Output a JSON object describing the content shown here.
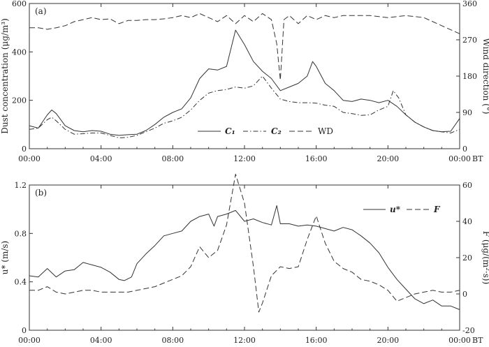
{
  "chart_data": [
    {
      "type": "line",
      "panel_label": "(a)",
      "ylabel_left": "Dust concentration (μg/m³)",
      "ylabel_right": "Wind direction (°)",
      "xlabel": "BT",
      "x_ticks": [
        "00:00",
        "04:00",
        "08:00",
        "12:00",
        "16:00",
        "20:00",
        "00:00"
      ],
      "x_tick_hours": [
        0,
        4,
        8,
        12,
        16,
        20,
        24
      ],
      "ylim_left": [
        0,
        600
      ],
      "yticks_left": [
        "0",
        "200",
        "400",
        "600"
      ],
      "ylim_right": [
        0,
        360
      ],
      "yticks_right": [
        "0",
        "90",
        "180",
        "270",
        "360"
      ],
      "legend_position": "bottom-center",
      "series": [
        {
          "name": "C₁",
          "axis": "left",
          "style": "solid",
          "points": [
            [
              0,
              95
            ],
            [
              0.5,
              85
            ],
            [
              1,
              140
            ],
            [
              1.25,
              160
            ],
            [
              1.5,
              145
            ],
            [
              2,
              95
            ],
            [
              2.5,
              75
            ],
            [
              3,
              70
            ],
            [
              3.5,
              75
            ],
            [
              4,
              72
            ],
            [
              4.5,
              60
            ],
            [
              5,
              55
            ],
            [
              5.5,
              58
            ],
            [
              6,
              60
            ],
            [
              6.5,
              75
            ],
            [
              7,
              100
            ],
            [
              7.5,
              130
            ],
            [
              8,
              150
            ],
            [
              8.5,
              165
            ],
            [
              9,
              210
            ],
            [
              9.5,
              290
            ],
            [
              10,
              330
            ],
            [
              10.5,
              325
            ],
            [
              11,
              340
            ],
            [
              11.5,
              490
            ],
            [
              12,
              430
            ],
            [
              12.5,
              360
            ],
            [
              13,
              320
            ],
            [
              13.5,
              290
            ],
            [
              14,
              240
            ],
            [
              14.5,
              255
            ],
            [
              15,
              270
            ],
            [
              15.5,
              300
            ],
            [
              15.8,
              360
            ],
            [
              16,
              340
            ],
            [
              16.5,
              270
            ],
            [
              17,
              240
            ],
            [
              17.5,
              200
            ],
            [
              18,
              195
            ],
            [
              18.5,
              205
            ],
            [
              19,
              200
            ],
            [
              19.5,
              190
            ],
            [
              20,
              200
            ],
            [
              20.5,
              175
            ],
            [
              21,
              140
            ],
            [
              21.5,
              110
            ],
            [
              22,
              90
            ],
            [
              22.5,
              75
            ],
            [
              23,
              70
            ],
            [
              23.5,
              72
            ],
            [
              24,
              125
            ]
          ]
        },
        {
          "name": "C₂",
          "axis": "left",
          "style": "dashdot",
          "points": [
            [
              0,
              80
            ],
            [
              0.5,
              85
            ],
            [
              1,
              120
            ],
            [
              1.25,
              130
            ],
            [
              1.5,
              115
            ],
            [
              2,
              80
            ],
            [
              2.5,
              60
            ],
            [
              3,
              62
            ],
            [
              3.5,
              65
            ],
            [
              4,
              65
            ],
            [
              4.5,
              55
            ],
            [
              5,
              45
            ],
            [
              5.5,
              47
            ],
            [
              6,
              55
            ],
            [
              6.5,
              70
            ],
            [
              7,
              85
            ],
            [
              7.5,
              105
            ],
            [
              8,
              115
            ],
            [
              8.5,
              130
            ],
            [
              9,
              160
            ],
            [
              9.5,
              200
            ],
            [
              10,
              230
            ],
            [
              10.5,
              240
            ],
            [
              11,
              245
            ],
            [
              11.5,
              255
            ],
            [
              12,
              250
            ],
            [
              12.5,
              260
            ],
            [
              13,
              300
            ],
            [
              13.5,
              250
            ],
            [
              14,
              205
            ],
            [
              14.5,
              195
            ],
            [
              15,
              190
            ],
            [
              15.5,
              190
            ],
            [
              16,
              188
            ],
            [
              16.5,
              180
            ],
            [
              17,
              175
            ],
            [
              17.5,
              150
            ],
            [
              18,
              145
            ],
            [
              18.5,
              138
            ],
            [
              19,
              140
            ],
            [
              19.5,
              160
            ],
            [
              20,
              175
            ],
            [
              20.3,
              240
            ],
            [
              20.6,
              210
            ],
            [
              21,
              140
            ],
            [
              21.5,
              110
            ],
            [
              22,
              90
            ],
            [
              22.5,
              75
            ],
            [
              23,
              70
            ],
            [
              23.5,
              65
            ],
            [
              24,
              80
            ]
          ]
        },
        {
          "name": "WD",
          "axis": "right",
          "style": "dashed",
          "points": [
            [
              0,
              300
            ],
            [
              0.5,
              300
            ],
            [
              1,
              296
            ],
            [
              1.5,
              300
            ],
            [
              2,
              305
            ],
            [
              2.5,
              315
            ],
            [
              3,
              320
            ],
            [
              3.5,
              325
            ],
            [
              4,
              320
            ],
            [
              4.5,
              322
            ],
            [
              5,
              310
            ],
            [
              5.5,
              318
            ],
            [
              6,
              318
            ],
            [
              6.5,
              320
            ],
            [
              7,
              320
            ],
            [
              7.5,
              322
            ],
            [
              8,
              325
            ],
            [
              8.5,
              330
            ],
            [
              9,
              325
            ],
            [
              9.5,
              335
            ],
            [
              10,
              325
            ],
            [
              10.5,
              315
            ],
            [
              11,
              330
            ],
            [
              11.5,
              310
            ],
            [
              12,
              330
            ],
            [
              12.5,
              315
            ],
            [
              13,
              335
            ],
            [
              13.5,
              320
            ],
            [
              13.8,
              260
            ],
            [
              14,
              170
            ],
            [
              14.2,
              320
            ],
            [
              14.5,
              330
            ],
            [
              15,
              310
            ],
            [
              15.5,
              330
            ],
            [
              16,
              320
            ],
            [
              16.5,
              330
            ],
            [
              17,
              325
            ],
            [
              17.5,
              330
            ],
            [
              18,
              330
            ],
            [
              19,
              330
            ],
            [
              20,
              325
            ],
            [
              21,
              330
            ],
            [
              22,
              325
            ],
            [
              23,
              305
            ],
            [
              23.5,
              295
            ],
            [
              24,
              285
            ]
          ]
        }
      ]
    },
    {
      "type": "line",
      "panel_label": "(b)",
      "ylabel_left": "u* (m/s)",
      "ylabel_right": "F (μg/(m²·s))",
      "xlabel": "BT",
      "x_ticks": [
        "00:00",
        "04:00",
        "08:00",
        "12:00",
        "16:00",
        "20:00",
        "00:00"
      ],
      "x_tick_hours": [
        0,
        4,
        8,
        12,
        16,
        20,
        24
      ],
      "ylim_left": [
        0,
        1.2
      ],
      "yticks_left": [
        "0",
        "0.4",
        "0.8",
        "1.2"
      ],
      "ylim_right": [
        -20,
        60
      ],
      "yticks_right": [
        "-20",
        "0",
        "20",
        "40",
        "60"
      ],
      "legend_position": "top-right",
      "series": [
        {
          "name": "u*",
          "axis": "left",
          "style": "solid",
          "points": [
            [
              0,
              0.45
            ],
            [
              0.5,
              0.44
            ],
            [
              1,
              0.51
            ],
            [
              1.5,
              0.44
            ],
            [
              2,
              0.49
            ],
            [
              2.5,
              0.5
            ],
            [
              3,
              0.56
            ],
            [
              3.5,
              0.54
            ],
            [
              4,
              0.52
            ],
            [
              4.5,
              0.48
            ],
            [
              5,
              0.42
            ],
            [
              5.3,
              0.41
            ],
            [
              5.7,
              0.44
            ],
            [
              6,
              0.55
            ],
            [
              6.5,
              0.63
            ],
            [
              7,
              0.7
            ],
            [
              7.5,
              0.78
            ],
            [
              8,
              0.8
            ],
            [
              8.5,
              0.82
            ],
            [
              9,
              0.9
            ],
            [
              9.5,
              0.94
            ],
            [
              10,
              0.96
            ],
            [
              10.3,
              0.86
            ],
            [
              10.5,
              0.94
            ],
            [
              11,
              0.96
            ],
            [
              11.5,
              0.99
            ],
            [
              12,
              0.9
            ],
            [
              12.5,
              0.92
            ],
            [
              13,
              0.89
            ],
            [
              13.5,
              0.87
            ],
            [
              13.8,
              1.03
            ],
            [
              14,
              0.88
            ],
            [
              14.5,
              0.88
            ],
            [
              15,
              0.86
            ],
            [
              15.5,
              0.87
            ],
            [
              16,
              0.86
            ],
            [
              16.5,
              0.84
            ],
            [
              17,
              0.82
            ],
            [
              17.5,
              0.85
            ],
            [
              18,
              0.83
            ],
            [
              18.5,
              0.78
            ],
            [
              19,
              0.72
            ],
            [
              19.5,
              0.64
            ],
            [
              20,
              0.52
            ],
            [
              20.5,
              0.42
            ],
            [
              21,
              0.34
            ],
            [
              21.5,
              0.26
            ],
            [
              22,
              0.22
            ],
            [
              22.5,
              0.25
            ],
            [
              23,
              0.2
            ],
            [
              23.5,
              0.2
            ],
            [
              24,
              0.17
            ]
          ]
        },
        {
          "name": "F",
          "axis": "right",
          "style": "dashed",
          "points": [
            [
              0,
              2
            ],
            [
              0.5,
              2
            ],
            [
              1,
              4
            ],
            [
              1.5,
              1
            ],
            [
              2,
              0
            ],
            [
              2.5,
              1
            ],
            [
              3,
              2
            ],
            [
              3.5,
              2
            ],
            [
              4,
              1
            ],
            [
              4.5,
              1
            ],
            [
              5,
              1
            ],
            [
              5.5,
              1
            ],
            [
              6,
              2
            ],
            [
              6.5,
              3
            ],
            [
              7,
              4
            ],
            [
              7.5,
              6
            ],
            [
              8,
              8
            ],
            [
              8.5,
              10
            ],
            [
              9,
              15
            ],
            [
              9.5,
              26
            ],
            [
              10,
              20
            ],
            [
              10.5,
              24
            ],
            [
              11,
              38
            ],
            [
              11.5,
              66
            ],
            [
              12,
              50
            ],
            [
              12.5,
              15
            ],
            [
              12.8,
              -10
            ],
            [
              13,
              -5
            ],
            [
              13.5,
              10
            ],
            [
              14,
              15
            ],
            [
              14.5,
              14
            ],
            [
              15,
              15
            ],
            [
              15.5,
              30
            ],
            [
              16,
              43
            ],
            [
              16.5,
              28
            ],
            [
              17,
              18
            ],
            [
              17.5,
              14
            ],
            [
              18,
              12
            ],
            [
              18.5,
              8
            ],
            [
              19,
              7
            ],
            [
              19.5,
              5
            ],
            [
              20,
              2
            ],
            [
              20.5,
              -4
            ],
            [
              21,
              -2
            ],
            [
              21.5,
              0
            ],
            [
              22,
              1
            ],
            [
              22.5,
              2
            ],
            [
              23,
              1
            ],
            [
              23.5,
              1
            ],
            [
              24,
              2
            ]
          ]
        }
      ]
    }
  ]
}
